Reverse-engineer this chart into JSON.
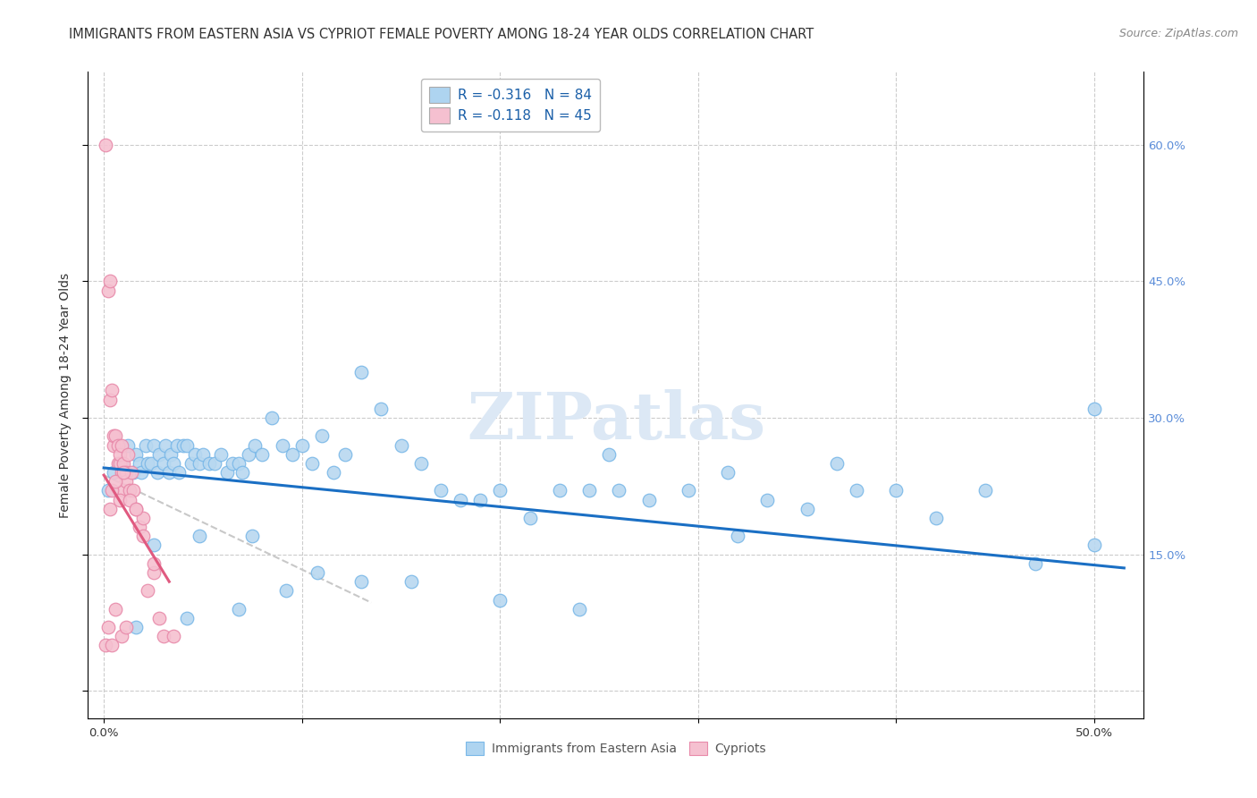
{
  "title": "IMMIGRANTS FROM EASTERN ASIA VS CYPRIOT FEMALE POVERTY AMONG 18-24 YEAR OLDS CORRELATION CHART",
  "source": "Source: ZipAtlas.com",
  "ylabel": "Female Poverty Among 18-24 Year Olds",
  "xlim": [
    -0.008,
    0.525
  ],
  "ylim": [
    -0.03,
    0.68
  ],
  "yticks": [
    0.0,
    0.15,
    0.3,
    0.45,
    0.6
  ],
  "ytick_labels": [
    "",
    "15.0%",
    "30.0%",
    "45.0%",
    "60.0%"
  ],
  "xticks": [
    0.0,
    0.1,
    0.2,
    0.3,
    0.4,
    0.5
  ],
  "xtick_labels_bottom": [
    "0.0%",
    "",
    "",
    "",
    "",
    "50.0%"
  ],
  "legend_top": [
    {
      "label": "R = -0.316   N = 84",
      "patch_color": "#aed4f0",
      "text_color": "#1a5fa8"
    },
    {
      "label": "R = -0.118   N = 45",
      "patch_color": "#f5c0d0",
      "text_color": "#1a5fa8"
    }
  ],
  "legend_bottom": [
    {
      "label": "Immigrants from Eastern Asia",
      "patch_color": "#aed4f0",
      "edge_color": "#7ab8e8"
    },
    {
      "label": "Cypriots",
      "patch_color": "#f5c0d0",
      "edge_color": "#e88aaa"
    }
  ],
  "scatter_blue": {
    "color": "#b8d8f0",
    "edgecolor": "#7ab8e8",
    "x": [
      0.002,
      0.005,
      0.009,
      0.012,
      0.015,
      0.016,
      0.018,
      0.019,
      0.021,
      0.022,
      0.024,
      0.025,
      0.027,
      0.028,
      0.03,
      0.031,
      0.033,
      0.034,
      0.035,
      0.037,
      0.038,
      0.04,
      0.042,
      0.044,
      0.046,
      0.048,
      0.05,
      0.053,
      0.056,
      0.059,
      0.062,
      0.065,
      0.068,
      0.07,
      0.073,
      0.076,
      0.08,
      0.085,
      0.09,
      0.095,
      0.1,
      0.105,
      0.11,
      0.116,
      0.122,
      0.13,
      0.14,
      0.15,
      0.16,
      0.17,
      0.18,
      0.19,
      0.2,
      0.215,
      0.23,
      0.245,
      0.26,
      0.275,
      0.295,
      0.315,
      0.335,
      0.355,
      0.38,
      0.4,
      0.42,
      0.445,
      0.47,
      0.5,
      0.255,
      0.37,
      0.5,
      0.068,
      0.016,
      0.042,
      0.092,
      0.13,
      0.2,
      0.048,
      0.025,
      0.075,
      0.108,
      0.155,
      0.24,
      0.32
    ],
    "y": [
      0.22,
      0.24,
      0.25,
      0.27,
      0.24,
      0.26,
      0.25,
      0.24,
      0.27,
      0.25,
      0.25,
      0.27,
      0.24,
      0.26,
      0.25,
      0.27,
      0.24,
      0.26,
      0.25,
      0.27,
      0.24,
      0.27,
      0.27,
      0.25,
      0.26,
      0.25,
      0.26,
      0.25,
      0.25,
      0.26,
      0.24,
      0.25,
      0.25,
      0.24,
      0.26,
      0.27,
      0.26,
      0.3,
      0.27,
      0.26,
      0.27,
      0.25,
      0.28,
      0.24,
      0.26,
      0.35,
      0.31,
      0.27,
      0.25,
      0.22,
      0.21,
      0.21,
      0.22,
      0.19,
      0.22,
      0.22,
      0.22,
      0.21,
      0.22,
      0.24,
      0.21,
      0.2,
      0.22,
      0.22,
      0.19,
      0.22,
      0.14,
      0.16,
      0.26,
      0.25,
      0.31,
      0.09,
      0.07,
      0.08,
      0.11,
      0.12,
      0.1,
      0.17,
      0.16,
      0.17,
      0.13,
      0.12,
      0.09,
      0.17
    ]
  },
  "scatter_pink": {
    "color": "#f5c0d0",
    "edgecolor": "#e88aaa",
    "x": [
      0.001,
      0.002,
      0.003,
      0.003,
      0.004,
      0.005,
      0.005,
      0.006,
      0.007,
      0.007,
      0.008,
      0.008,
      0.009,
      0.009,
      0.01,
      0.01,
      0.011,
      0.011,
      0.012,
      0.013,
      0.014,
      0.015,
      0.016,
      0.018,
      0.02,
      0.022,
      0.025,
      0.028,
      0.03,
      0.035,
      0.003,
      0.004,
      0.006,
      0.008,
      0.01,
      0.013,
      0.016,
      0.02,
      0.025,
      0.001,
      0.002,
      0.004,
      0.006,
      0.009,
      0.011
    ],
    "y": [
      0.6,
      0.44,
      0.45,
      0.32,
      0.33,
      0.27,
      0.28,
      0.28,
      0.25,
      0.27,
      0.25,
      0.26,
      0.24,
      0.27,
      0.22,
      0.25,
      0.24,
      0.23,
      0.26,
      0.22,
      0.24,
      0.22,
      0.2,
      0.18,
      0.19,
      0.11,
      0.13,
      0.08,
      0.06,
      0.06,
      0.2,
      0.22,
      0.23,
      0.21,
      0.24,
      0.21,
      0.2,
      0.17,
      0.14,
      0.05,
      0.07,
      0.05,
      0.09,
      0.06,
      0.07
    ]
  },
  "trend_blue": {
    "x_start": 0.0,
    "x_end": 0.515,
    "y_start": 0.245,
    "y_end": 0.135,
    "color": "#1a6fc4",
    "linewidth": 2.2
  },
  "trend_pink_solid": {
    "x_start": 0.0,
    "x_end": 0.033,
    "y_start": 0.237,
    "y_end": 0.12,
    "color": "#e05a80",
    "linewidth": 2.2
  },
  "trend_pink_dashed": {
    "x_start": 0.0,
    "x_end": 0.135,
    "y_start": 0.237,
    "y_end": 0.097,
    "color": "#c8c8c8",
    "linewidth": 1.5,
    "linestyle": "--"
  },
  "watermark": "ZIPatlas",
  "watermark_color": "#dce8f5",
  "background_color": "#ffffff",
  "grid_color": "#cccccc",
  "title_fontsize": 10.5,
  "source_fontsize": 9,
  "ylabel_fontsize": 10,
  "tick_fontsize": 9.5
}
